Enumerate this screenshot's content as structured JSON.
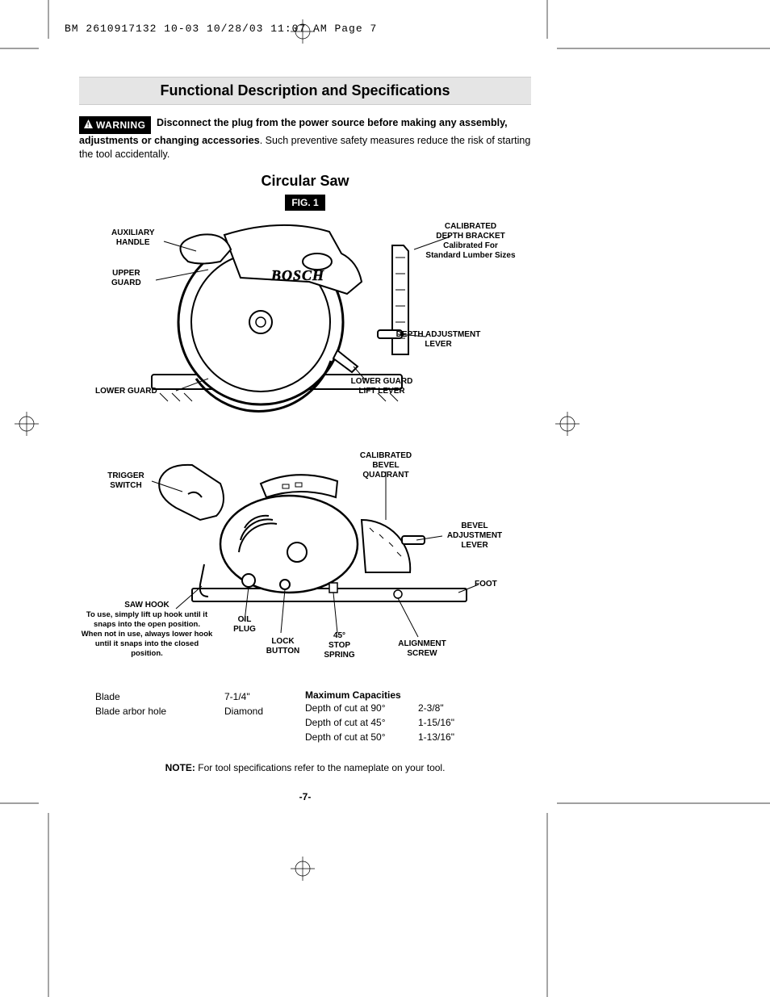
{
  "header": "BM 2610917132 10-03  10/28/03  11:07 AM  Page 7",
  "title": "Functional Description and Specifications",
  "warning": {
    "badge": "WARNING",
    "bold": "Disconnect the plug from the power source before making any assembly, adjustments or changing accessories",
    "rest": ". Such preventive safety measures reduce the risk of starting the tool accidentally."
  },
  "subtitle": "Circular Saw",
  "fig": "FIG. 1",
  "brand": "BOSCH",
  "diagram1": {
    "callouts": {
      "aux_handle": "AUXILIARY\nHANDLE",
      "upper_guard": "UPPER\nGUARD",
      "lower_guard": "LOWER GUARD",
      "calib_depth": "CALIBRATED\nDEPTH BRACKET",
      "calib_depth_sub": "Calibrated For\nStandard Lumber Sizes",
      "depth_adj": "DEPTH ADJUSTMENT\nLEVER",
      "lg_lift": "LOWER GUARD\nLIFT LEVER"
    }
  },
  "diagram2": {
    "callouts": {
      "trigger": "TRIGGER\nSWITCH",
      "saw_hook": "SAW HOOK",
      "saw_hook_note1": "To use, simply lift up hook until it snaps into the open position.",
      "saw_hook_note2": "When not in use, always lower hook until it snaps into the closed position.",
      "oil_plug": "OIL\nPLUG",
      "lock_button": "LOCK\nBUTTON",
      "stop_spring": "45°\nSTOP\nSPRING",
      "align_screw": "ALIGNMENT\nSCREW",
      "foot": "FOOT",
      "bevel_adj": "BEVEL\nADJUSTMENT\nLEVER",
      "calib_bevel": "CALIBRATED\nBEVEL\nQUADRANT"
    }
  },
  "specs_left": [
    {
      "label": "Blade",
      "value": "7-1/4\""
    },
    {
      "label": "Blade arbor hole",
      "value": "Diamond"
    }
  ],
  "specs_right_title": "Maximum Capacities",
  "specs_right": [
    {
      "label": "Depth of cut at 90°",
      "value": "2-3/8\""
    },
    {
      "label": "Depth of cut at 45°",
      "value": "1-15/16\""
    },
    {
      "label": "Depth of cut at 50°",
      "value": "1-13/16\""
    }
  ],
  "note_bold": "NOTE:",
  "note_rest": " For tool specifications refer to the nameplate on your tool.",
  "pagenum": "-7-",
  "colors": {
    "titlebar_bg": "#e5e5e5",
    "badge_bg": "#000000",
    "badge_fg": "#ffffff",
    "text": "#000000"
  }
}
